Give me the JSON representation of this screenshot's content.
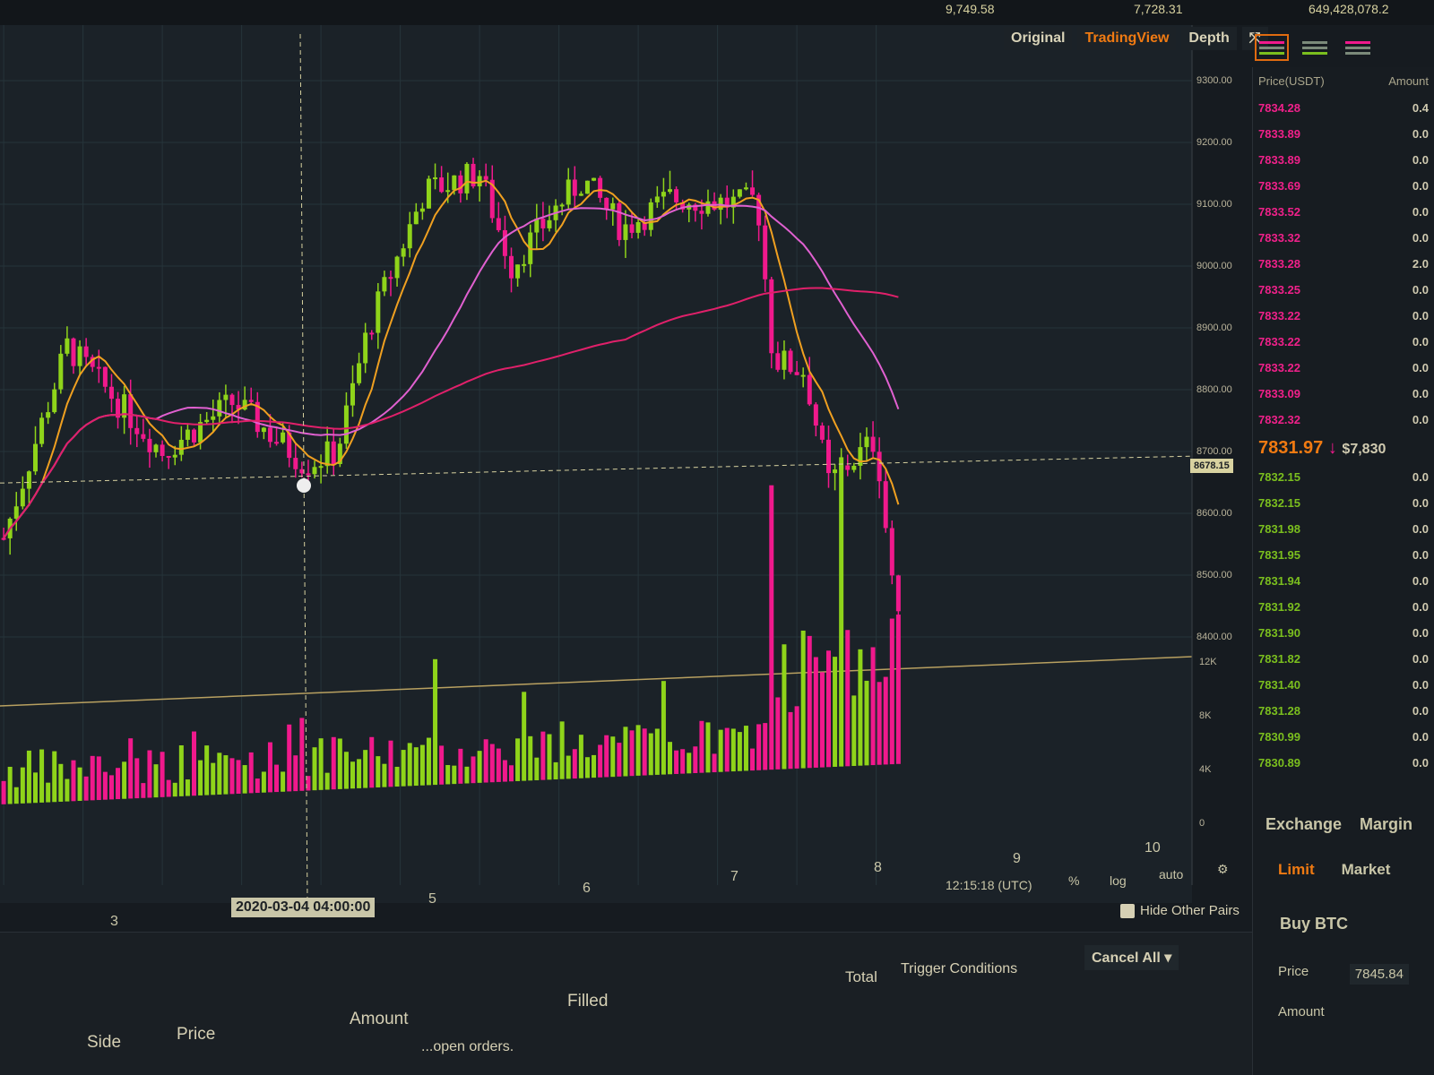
{
  "top_stats": [
    "9,749.58",
    "7,728.31",
    "649,428,078.2"
  ],
  "chart_views": [
    {
      "label": "Original",
      "active": false
    },
    {
      "label": "TradingView",
      "active": true
    },
    {
      "label": "Depth",
      "active": false
    }
  ],
  "fullscreen_icon": "expand-arrows-icon",
  "orderbook_views": [
    "both-sides-icon",
    "bids-only-icon",
    "asks-only-icon"
  ],
  "price_axis": [
    "9300.00",
    "9200.00",
    "9100.00",
    "9000.00",
    "8900.00",
    "8800.00",
    "8700.00",
    "8600.00",
    "8500.00",
    "8400.00"
  ],
  "current_price_label": "8678.15",
  "volume_axis": [
    "12K",
    "8K",
    "4K",
    "0"
  ],
  "x_axis": [
    "3",
    "2020-03-04 04:00:00",
    "5",
    "6",
    "7",
    "8",
    "9",
    "10"
  ],
  "chart_controls": {
    "time": "12:15:18 (UTC)",
    "percent": "%",
    "log": "log",
    "auto": "auto",
    "settings_icon": "gear-icon"
  },
  "colors": {
    "up": "#8fd41a",
    "down": "#f0198c",
    "ma_short": "#f0a020",
    "ma_mid": "#e060d0",
    "ma_long": "#e0206a",
    "background": "#1b2228"
  },
  "price_keypoints": [
    [
      2.3,
      8560
    ],
    [
      2.7,
      8870
    ],
    [
      3.3,
      8700
    ],
    [
      3.75,
      8780
    ],
    [
      4.2,
      8680
    ],
    [
      4.4,
      8700
    ],
    [
      4.6,
      8900
    ],
    [
      4.95,
      9120
    ],
    [
      5.3,
      9150
    ],
    [
      5.5,
      9000
    ],
    [
      5.8,
      9100
    ],
    [
      5.95,
      9140
    ],
    [
      6.2,
      9060
    ],
    [
      6.5,
      9110
    ],
    [
      6.95,
      9100
    ],
    [
      7.05,
      9110
    ],
    [
      7.15,
      8850
    ],
    [
      7.35,
      8830
    ],
    [
      7.5,
      8650
    ],
    [
      7.8,
      8720
    ],
    [
      7.85,
      8600
    ],
    [
      7.95,
      8400
    ]
  ],
  "orderbook": {
    "headers": {
      "price": "Price(USDT)",
      "amount": "Amount"
    },
    "asks": [
      [
        "7834.28",
        "0.4"
      ],
      [
        "7833.89",
        "0.0"
      ],
      [
        "7833.89",
        "0.0"
      ],
      [
        "7833.69",
        "0.0"
      ],
      [
        "7833.52",
        "0.0"
      ],
      [
        "7833.32",
        "0.0"
      ],
      [
        "7833.28",
        "2.0"
      ],
      [
        "7833.25",
        "0.0"
      ],
      [
        "7833.22",
        "0.0"
      ],
      [
        "7833.22",
        "0.0"
      ],
      [
        "7833.22",
        "0.0"
      ],
      [
        "7833.09",
        "0.0"
      ],
      [
        "7832.32",
        "0.0"
      ]
    ],
    "last_price": "7831.97",
    "last_usd": "$7,830",
    "bids": [
      [
        "7832.15",
        "0.0"
      ],
      [
        "7832.15",
        "0.0"
      ],
      [
        "7831.98",
        "0.0"
      ],
      [
        "7831.95",
        "0.0"
      ],
      [
        "7831.94",
        "0.0"
      ],
      [
        "7831.92",
        "0.0"
      ],
      [
        "7831.90",
        "0.0"
      ],
      [
        "7831.82",
        "0.0"
      ],
      [
        "7831.40",
        "0.0"
      ],
      [
        "7831.28",
        "0.0"
      ],
      [
        "7830.99",
        "0.0"
      ],
      [
        "7830.89",
        "0.0"
      ]
    ]
  },
  "trade": {
    "tabs": [
      "Exchange",
      "Margin"
    ],
    "order_types": [
      "Limit",
      "Market"
    ],
    "title": "Buy BTC",
    "price_label": "Price",
    "price_value": "7845.84",
    "amount_label": "Amount"
  },
  "orders": {
    "hide_other_pairs": "Hide Other Pairs",
    "cancel_all": "Cancel All",
    "columns": [
      "Side",
      "Price",
      "Amount",
      "Filled",
      "Total",
      "Trigger Conditions"
    ],
    "empty": "...open orders."
  }
}
